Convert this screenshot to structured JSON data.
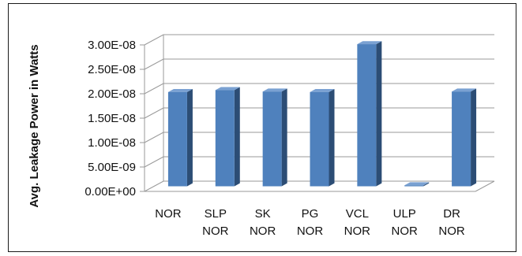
{
  "chart_data": {
    "type": "bar",
    "title": "",
    "xlabel": "",
    "ylabel": "Avg. Leakage Power in Watts",
    "categories": [
      [
        "NOR"
      ],
      [
        "SLP",
        "NOR"
      ],
      [
        "SK",
        "NOR"
      ],
      [
        "PG",
        "NOR"
      ],
      [
        "VCL",
        "NOR"
      ],
      [
        "ULP",
        "NOR"
      ],
      [
        "DR",
        "NOR"
      ]
    ],
    "values": [
      1.93e-08,
      1.97e-08,
      1.94e-08,
      1.93e-08,
      2.91e-08,
      2e-10,
      1.94e-08
    ],
    "ylim": [
      0,
      3e-08
    ],
    "yticks": [
      "0.00E+00",
      "5.00E-09",
      "1.00E-08",
      "1.50E-08",
      "2.00E-08",
      "2.50E-08",
      "3.00E-08"
    ],
    "grid": true,
    "legend": "none",
    "three_d": true,
    "colors": {
      "bar_front": "#4f81bd",
      "bar_side": "#2c4d75",
      "bar_top": "#7aa1d2",
      "grid": "#9a9a9a"
    }
  }
}
